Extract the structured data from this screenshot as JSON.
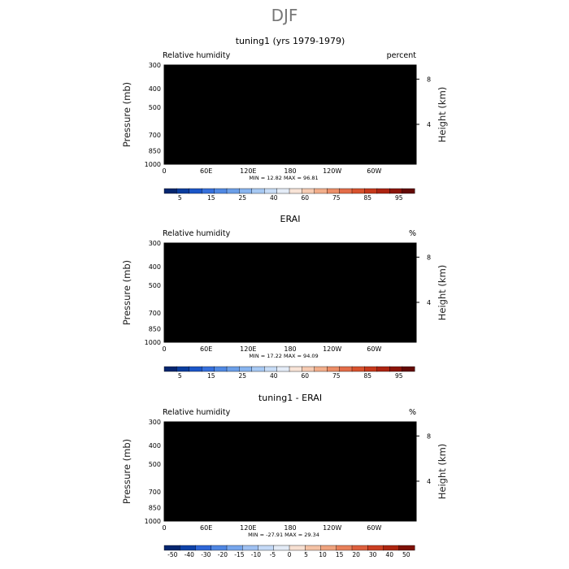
{
  "figure": {
    "title": "DJF"
  },
  "palettes": {
    "rh": [
      "#05266f",
      "#0b3d9e",
      "#1b56c8",
      "#3670dc",
      "#5089e3",
      "#6c9fe8",
      "#88b4ef",
      "#a7c9f3",
      "#c7dcf6",
      "#e4ecf7",
      "#f8e4d7",
      "#f6cbb2",
      "#f2ae8b",
      "#ec8e67",
      "#e36d49",
      "#d8522e",
      "#c6391c",
      "#ad2411",
      "#8c1409",
      "#630a05"
    ],
    "diff": [
      "#05266f",
      "#0e42a8",
      "#2e66d7",
      "#4f86e2",
      "#77a6ec",
      "#9fc1f2",
      "#c4d9f6",
      "#e3ebf6",
      "#f7e0d2",
      "#f4c2a5",
      "#efa37e",
      "#e8805a",
      "#dd5f3d",
      "#cb3f22",
      "#ad2610",
      "#7e1106"
    ]
  },
  "chart_data": [
    {
      "type": "heatmap",
      "title": "tuning1 (yrs 1979-1979)",
      "left_label": "Relative humidity",
      "right_label": "percent",
      "ylabel": "Pressure (mb)",
      "ylabel_right": "Height (km)",
      "x_ticks": [
        "0",
        "60E",
        "120E",
        "180",
        "120W",
        "60W"
      ],
      "x_tick_values": [
        0,
        60,
        120,
        180,
        240,
        300
      ],
      "xlim": [
        0,
        360
      ],
      "y_ticks": [
        "300",
        "400",
        "500",
        "700",
        "850",
        "1000"
      ],
      "y_tick_values": [
        300,
        400,
        500,
        700,
        850,
        1000
      ],
      "ylim": [
        300,
        1000
      ],
      "height_ticks": [
        "8",
        "4"
      ],
      "height_tick_values": [
        8,
        4
      ],
      "stats": "MIN =   12.82   MAX =   96.81",
      "colorbar_ticks": [
        "5",
        "15",
        "25",
        "40",
        "60",
        "75",
        "85",
        "95"
      ],
      "colorbar_levels": [
        5,
        10,
        15,
        20,
        25,
        30,
        35,
        40,
        50,
        60,
        70,
        75,
        80,
        85,
        90,
        95
      ],
      "palette": "rh",
      "vmin": 0,
      "vmax": 100,
      "field": "rh_model",
      "topography": [
        {
          "lon_start": 10,
          "lon_end": 38,
          "p_top": 925
        },
        {
          "lon_start": 27,
          "lon_end": 38,
          "p_top": 870
        },
        {
          "lon_start": 282,
          "lon_end": 298,
          "p_top": 925
        },
        {
          "lon_start": 300,
          "lon_end": 310,
          "p_top": 925
        }
      ]
    },
    {
      "type": "heatmap",
      "title": "ERAI",
      "left_label": "Relative humidity",
      "right_label": "%",
      "ylabel": "Pressure (mb)",
      "ylabel_right": "Height (km)",
      "x_ticks": [
        "0",
        "60E",
        "120E",
        "180",
        "120W",
        "60W"
      ],
      "x_tick_values": [
        0,
        60,
        120,
        180,
        240,
        300
      ],
      "xlim": [
        0,
        360
      ],
      "y_ticks": [
        "300",
        "400",
        "500",
        "700",
        "850",
        "1000"
      ],
      "y_tick_values": [
        300,
        400,
        500,
        700,
        850,
        1000
      ],
      "ylim": [
        300,
        1000
      ],
      "height_ticks": [
        "8",
        "4"
      ],
      "height_tick_values": [
        8,
        4
      ],
      "stats": "MIN =   17.22   MAX =   94.09",
      "colorbar_ticks": [
        "5",
        "15",
        "25",
        "40",
        "60",
        "75",
        "85",
        "95"
      ],
      "colorbar_levels": [
        5,
        10,
        15,
        20,
        25,
        30,
        35,
        40,
        50,
        60,
        70,
        75,
        80,
        85,
        90,
        95
      ],
      "palette": "rh",
      "vmin": 0,
      "vmax": 100,
      "field": "rh_obs",
      "topography": []
    },
    {
      "type": "heatmap",
      "title": "tuning1 - ERAI",
      "left_label": "Relative humidity",
      "right_label": "%",
      "ylabel": "Pressure (mb)",
      "ylabel_right": "Height (km)",
      "x_ticks": [
        "0",
        "60E",
        "120E",
        "180",
        "120W",
        "60W"
      ],
      "x_tick_values": [
        0,
        60,
        120,
        180,
        240,
        300
      ],
      "xlim": [
        0,
        360
      ],
      "y_ticks": [
        "300",
        "400",
        "500",
        "700",
        "850",
        "1000"
      ],
      "y_tick_values": [
        300,
        400,
        500,
        700,
        850,
        1000
      ],
      "ylim": [
        300,
        1000
      ],
      "height_ticks": [
        "8",
        "4"
      ],
      "height_tick_values": [
        8,
        4
      ],
      "stats": "MIN =  -27.91   MAX =   29.34",
      "colorbar_ticks": [
        "-50",
        "-40",
        "-30",
        "-20",
        "-15",
        "-10",
        "-5",
        "0",
        "5",
        "10",
        "15",
        "20",
        "30",
        "40",
        "50"
      ],
      "colorbar_levels": [
        -50,
        -40,
        -30,
        -20,
        -15,
        -10,
        -5,
        0,
        5,
        10,
        15,
        20,
        30,
        40,
        50
      ],
      "palette": "diff",
      "vmin": -30,
      "vmax": 30,
      "field": "rh_diff",
      "topography": [
        {
          "lon_start": 10,
          "lon_end": 38,
          "p_top": 925
        },
        {
          "lon_start": 27,
          "lon_end": 38,
          "p_top": 870
        },
        {
          "lon_start": 282,
          "lon_end": 298,
          "p_top": 925
        },
        {
          "lon_start": 300,
          "lon_end": 310,
          "p_top": 925
        }
      ]
    }
  ]
}
